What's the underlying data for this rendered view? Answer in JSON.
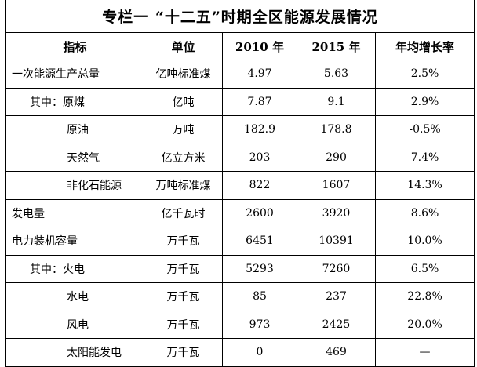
{
  "title": "专栏一 “十二五”时期全区能源发展情况",
  "headers": [
    "指标",
    "单位",
    "2010 年",
    "2015 年",
    "年均增长率"
  ],
  "rows": [
    {
      "name": "一次能源生产总量",
      "unit": "亿吨标准煤",
      "y2010": "4.97",
      "y2015": "5.63",
      "rate": "2.5%",
      "indent": 0
    },
    {
      "name": "其中：原煤",
      "unit": "亿吨",
      "y2010": "7.87",
      "y2015": "9.1",
      "rate": "2.9%",
      "indent": 1
    },
    {
      "name": "原油",
      "unit": "万吨",
      "y2010": "182.9",
      "y2015": "178.8",
      "rate": "-0.5%",
      "indent": 2
    },
    {
      "name": "天然气",
      "unit": "亿立方米",
      "y2010": "203",
      "y2015": "290",
      "rate": "7.4%",
      "indent": 2
    },
    {
      "name": "非化石能源",
      "unit": "万吨标准煤",
      "y2010": "822",
      "y2015": "1607",
      "rate": "14.3%",
      "indent": 2
    },
    {
      "name": "发电量",
      "unit": "亿千瓦时",
      "y2010": "2600",
      "y2015": "3920",
      "rate": "8.6%",
      "indent": 0
    },
    {
      "name": "电力装机容量",
      "unit": "万千瓦",
      "y2010": "6451",
      "y2015": "10391",
      "rate": "10.0%",
      "indent": 0
    },
    {
      "name": "其中：火电",
      "unit": "万千瓦",
      "y2010": "5293",
      "y2015": "7260",
      "rate": "6.5%",
      "indent": 1
    },
    {
      "name": "水电",
      "unit": "万千瓦",
      "y2010": "85",
      "y2015": "237",
      "rate": "22.8%",
      "indent": 2
    },
    {
      "name": "风电",
      "unit": "万千瓦",
      "y2010": "973",
      "y2015": "2425",
      "rate": "20.0%",
      "indent": 2
    },
    {
      "name": "太阳能发电",
      "unit": "万千瓦",
      "y2010": "0",
      "y2015": "469",
      "rate": "—",
      "indent": 2
    }
  ]
}
